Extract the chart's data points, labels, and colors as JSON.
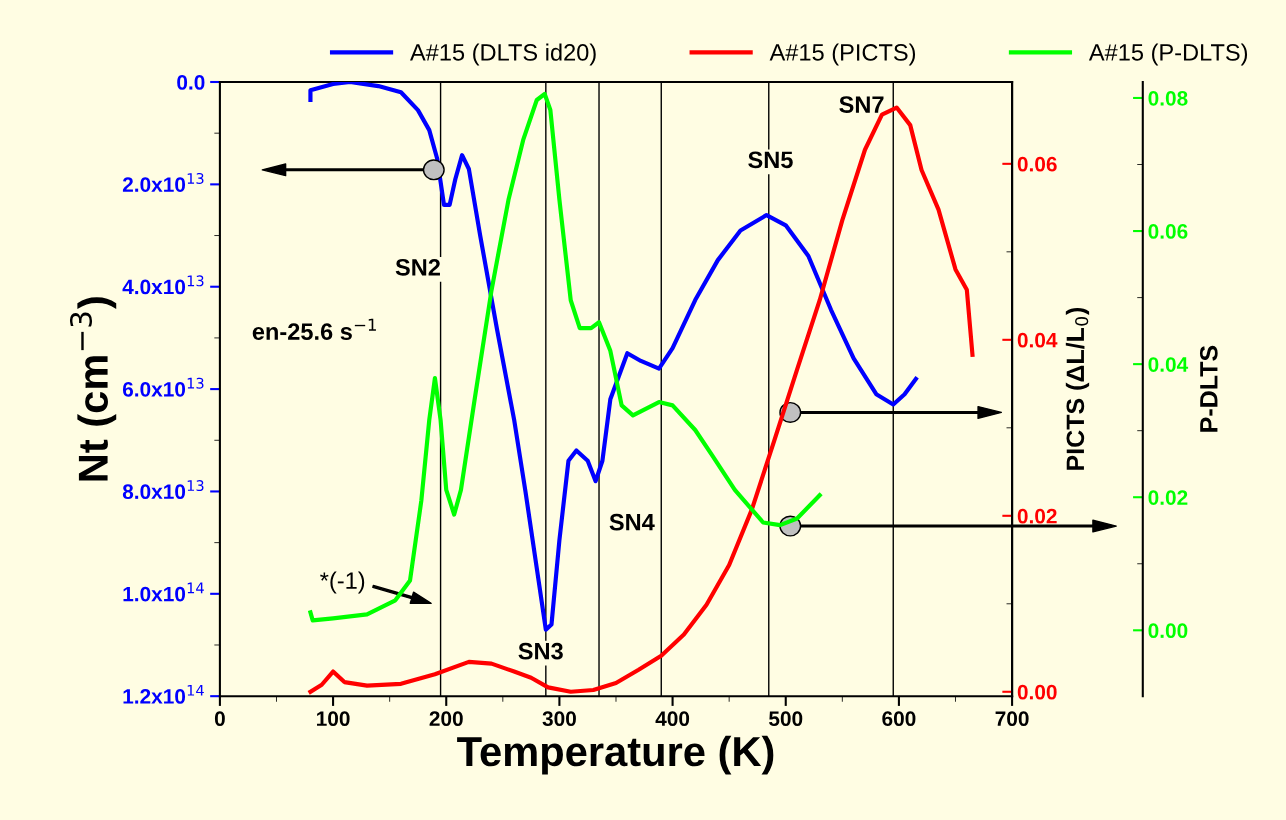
{
  "chart_data": {
    "type": "line",
    "xlabel": "Temperature (K)",
    "ylabel": "Nt (cm$^{−3}$)",
    "y2label": "PICTS (ΔL/L$_{0}$)",
    "y3label": "P-DLTS",
    "xlim": [
      0,
      700
    ],
    "xticks": [
      0,
      100,
      200,
      300,
      400,
      500,
      600,
      700
    ],
    "ylim": [
      120000000000000.0,
      0
    ],
    "yticks": [
      {
        "value": 0,
        "label": "0.0"
      },
      {
        "value": 20000000000000.0,
        "label": "2.0x10$^{13}$"
      },
      {
        "value": 40000000000000.0,
        "label": "4.0x10$^{13}$"
      },
      {
        "value": 60000000000000.0,
        "label": "6.0x10$^{13}$"
      },
      {
        "value": 80000000000000.0,
        "label": "8.0x10$^{13}$"
      },
      {
        "value": 100000000000000.0,
        "label": "1.0x10$^{14}$"
      },
      {
        "value": 120000000000000.0,
        "label": "1.2x10$^{14}$"
      }
    ],
    "y2lim": [
      -0.0005,
      0.0693
    ],
    "y2ticks": [
      {
        "value": 0,
        "label": "0.00"
      },
      {
        "value": 0.02,
        "label": "0.02"
      },
      {
        "value": 0.04,
        "label": "0.04"
      },
      {
        "value": 0.06,
        "label": "0.06"
      }
    ],
    "y3lim": [
      -0.0099,
      0.0824
    ],
    "y3ticks": [
      {
        "value": 0,
        "label": "0.00"
      },
      {
        "value": 0.02,
        "label": "0.02"
      },
      {
        "value": 0.04,
        "label": "0.04"
      },
      {
        "value": 0.06,
        "label": "0.06"
      },
      {
        "value": 0.08,
        "label": "0.08"
      }
    ],
    "legend": "top",
    "grid": false,
    "marker": "none",
    "line_style": "solid",
    "series": [
      {
        "name": "A#15 (DLTS id20)",
        "color": "#0000ff",
        "x": [
          80,
          80,
          100,
          115,
          140,
          160,
          175,
          185,
          192,
          198,
          203,
          208,
          214,
          220,
          230,
          245,
          260,
          270,
          280,
          288,
          293,
          300,
          308,
          315,
          325,
          332,
          338,
          345,
          360,
          372,
          388,
          400,
          420,
          440,
          460,
          483,
          500,
          520,
          540,
          560,
          580,
          595,
          605,
          615
        ],
        "values": [
          3500000000000.0,
          1600000000000.0,
          400000000000.0,
          0,
          800000000000.0,
          2000000000000.0,
          5500000000000.0,
          9400000000000.0,
          15000000000000.0,
          24000000000000.0,
          24000000000000.0,
          19000000000000.0,
          14300000000000.0,
          17000000000000.0,
          30000000000000.0,
          48500000000000.0,
          66000000000000.0,
          80000000000000.0,
          95000000000000.0,
          107000000000000.0,
          106000000000000.0,
          89500000000000.0,
          74000000000000.0,
          72000000000000.0,
          74000000000000.0,
          78000000000000.0,
          74000000000000.0,
          62000000000000.0,
          53000000000000.0,
          54500000000000.0,
          56000000000000.0,
          52000000000000.0,
          42600000000000.0,
          34800000000000.0,
          29000000000000.0,
          26000000000000.0,
          28000000000000.0,
          34000000000000.0,
          44500000000000.0,
          54000000000000.0,
          61000000000000.0,
          63000000000000.0,
          61000000000000.0,
          58000000000000.0
        ]
      },
      {
        "name": "A#15 (PICTS)",
        "color": "#ff0000",
        "axis": "y2",
        "x": [
          80,
          90,
          100,
          110,
          130,
          160,
          190,
          220,
          240,
          260,
          275,
          290,
          310,
          330,
          350,
          370,
          390,
          410,
          430,
          450,
          470,
          490,
          510,
          530,
          550,
          570,
          585,
          598,
          610,
          620,
          635,
          650,
          660,
          665
        ],
        "values": [
          0,
          0.0008,
          0.0023,
          0.0011,
          0.0007,
          0.0009,
          0.002,
          0.0034,
          0.0032,
          0.0023,
          0.0016,
          0.0005,
          0,
          0.0002,
          0.001,
          0.0025,
          0.0041,
          0.0065,
          0.0099,
          0.0144,
          0.0207,
          0.0286,
          0.0366,
          0.0445,
          0.0536,
          0.0616,
          0.0656,
          0.0664,
          0.0644,
          0.0593,
          0.0548,
          0.048,
          0.0457,
          0.0383
        ]
      },
      {
        "name": "A#15 (P-DLTS)",
        "color": "#00ff00",
        "axis": "y3",
        "x": [
          80,
          82,
          100,
          130,
          155,
          168,
          178,
          185,
          190,
          195,
          200,
          207,
          213,
          225,
          240,
          255,
          268,
          280,
          287,
          292,
          300,
          310,
          318,
          328,
          335,
          345,
          355,
          365,
          388,
          400,
          420,
          435,
          455,
          480,
          495,
          510,
          530
        ],
        "values": [
          0.0027,
          0.0015,
          0.0018,
          0.0024,
          0.0045,
          0.0075,
          0.0195,
          0.0316,
          0.0379,
          0.0316,
          0.0211,
          0.0174,
          0.0211,
          0.0346,
          0.0511,
          0.0647,
          0.0737,
          0.0797,
          0.0806,
          0.0782,
          0.0647,
          0.0496,
          0.0454,
          0.0454,
          0.0463,
          0.042,
          0.0338,
          0.0323,
          0.0343,
          0.0338,
          0.0301,
          0.0263,
          0.0211,
          0.0162,
          0.0158,
          0.0168,
          0.0203
        ]
      }
    ],
    "ref_lines": [
      {
        "axis": "x",
        "value": 195
      },
      {
        "axis": "x",
        "value": 288
      },
      {
        "axis": "x",
        "value": 335
      },
      {
        "axis": "x",
        "value": 390
      },
      {
        "axis": "x",
        "value": 485
      },
      {
        "axis": "x",
        "value": 595
      }
    ],
    "annotations": [
      "SN2",
      "SN3",
      "SN4",
      "SN5",
      "SN7",
      "en-25.6 s$^{−1}$",
      "*(-1)"
    ]
  }
}
